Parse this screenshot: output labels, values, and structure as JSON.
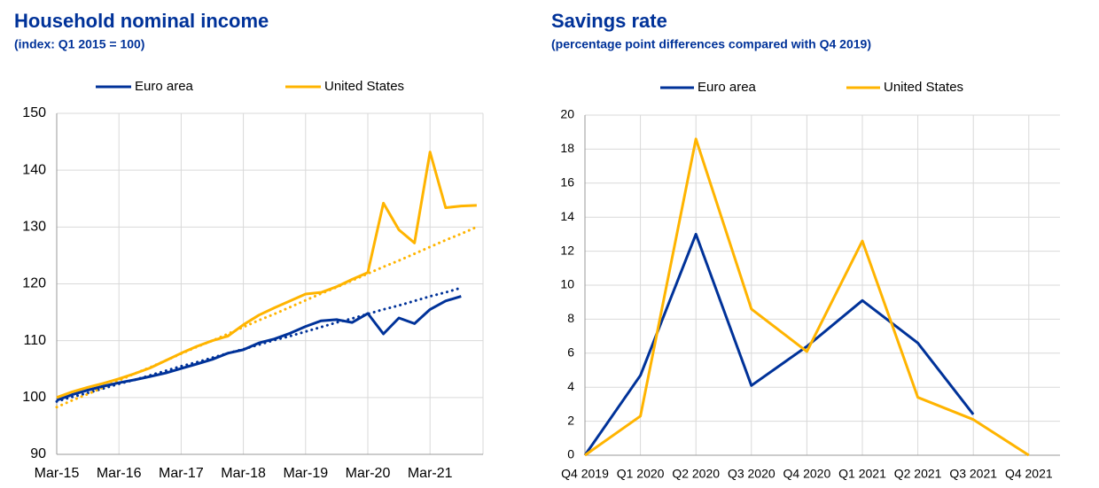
{
  "chart_data": [
    {
      "type": "line",
      "title": "Household nominal income",
      "subtitle": "(index: Q1 2015 = 100)",
      "categories": [
        "Mar-15",
        null,
        null,
        null,
        "Mar-16",
        null,
        null,
        null,
        "Mar-17",
        null,
        null,
        null,
        "Mar-18",
        null,
        null,
        null,
        "Mar-19",
        null,
        null,
        null,
        "Mar-20",
        null,
        null,
        null,
        "Mar-21",
        null,
        null,
        null
      ],
      "series": [
        {
          "name": "Euro area",
          "color": "#003299",
          "values": [
            99.5,
            100.5,
            101.3,
            102.0,
            102.6,
            103.1,
            103.7,
            104.3,
            105.1,
            105.9,
            106.7,
            107.8,
            108.4,
            109.6,
            110.3,
            111.3,
            112.5,
            113.5,
            113.7,
            113.2,
            114.8,
            111.2,
            114.0,
            113.0,
            115.5,
            117.0,
            117.8,
            null
          ]
        },
        {
          "name": "United States",
          "color": "#ffb400",
          "values": [
            100,
            101,
            101.8,
            102.5,
            103.3,
            104.2,
            105.2,
            106.5,
            107.8,
            109,
            110,
            110.8,
            112.8,
            114.5,
            115.8,
            117,
            118.2,
            118.5,
            119.5,
            120.8,
            122,
            134.2,
            129.5,
            127.2,
            143.2,
            133.4,
            133.7,
            133.8
          ]
        },
        {
          "color": "#003299",
          "style": "dotted",
          "values": [
            99.3,
            100.1,
            100.8,
            101.6,
            102.4,
            103.1,
            103.9,
            104.7,
            105.5,
            106.2,
            107.0,
            107.8,
            108.5,
            109.3,
            110.1,
            110.8,
            111.6,
            112.4,
            113.2,
            113.9,
            114.7,
            115.5,
            116.2,
            117.0,
            117.8,
            118.5,
            119.3,
            null
          ]
        },
        {
          "color": "#ffb400",
          "style": "dotted",
          "values": [
            98.3,
            99.5,
            100.6,
            101.8,
            103.0,
            104.2,
            105.3,
            106.5,
            107.7,
            108.9,
            110.0,
            111.2,
            112.4,
            113.6,
            114.7,
            115.9,
            117.1,
            118.3,
            119.4,
            120.6,
            121.8,
            123.0,
            124.1,
            125.3,
            126.5,
            127.7,
            128.8,
            130.0
          ]
        }
      ],
      "ylim": [
        90,
        150
      ],
      "yticks": [
        90,
        100,
        110,
        120,
        130,
        140,
        150
      ],
      "grid": true
    },
    {
      "type": "line",
      "title": "Savings rate",
      "subtitle": "(percentage point differences compared with Q4 2019)",
      "categories": [
        "Q4 2019",
        "Q1 2020",
        "Q2 2020",
        "Q3 2020",
        "Q4 2020",
        "Q1 2021",
        "Q2 2021",
        "Q3 2021",
        "Q4 2021"
      ],
      "series": [
        {
          "name": "Euro area",
          "color": "#003299",
          "values": [
            0,
            4.7,
            13,
            4.1,
            6.4,
            9.1,
            6.6,
            2.4,
            null
          ]
        },
        {
          "name": "United States",
          "color": "#ffb400",
          "values": [
            0,
            2.3,
            18.6,
            8.6,
            6.1,
            12.6,
            3.4,
            2.1,
            0
          ]
        }
      ],
      "ylim": [
        0,
        20
      ],
      "yticks": [
        0,
        2,
        4,
        6,
        8,
        10,
        12,
        14,
        16,
        18,
        20
      ],
      "grid": true
    }
  ]
}
